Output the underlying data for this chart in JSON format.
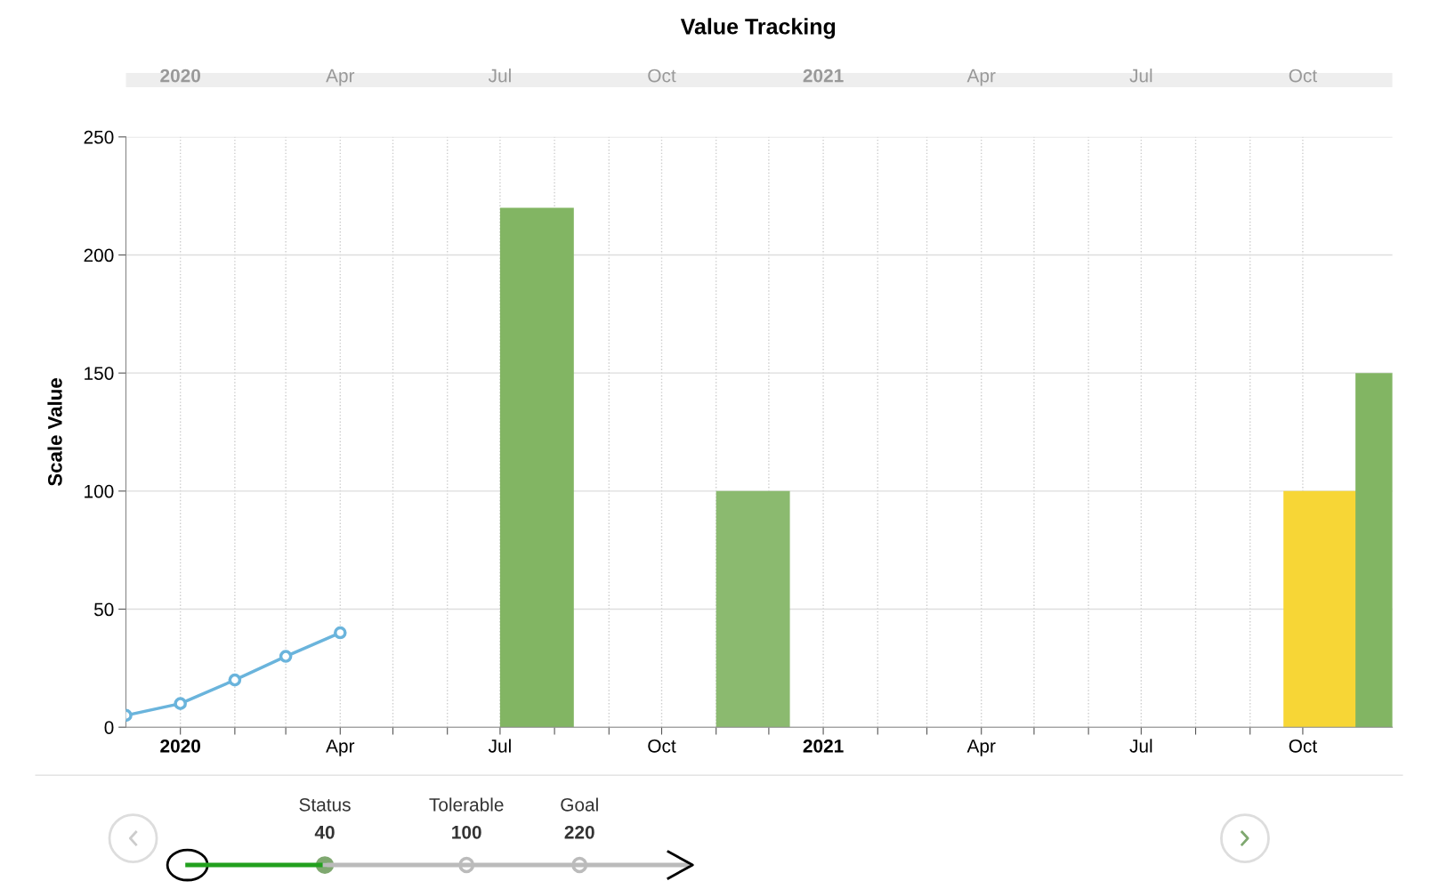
{
  "chart_data": {
    "type": "bar",
    "title": "Value Tracking",
    "ylabel": "Scale Value",
    "series": [
      {
        "type": "line",
        "color": "#6ab4dc",
        "marker": "circle",
        "line_style": "solid",
        "x": [
          "2019-12-01",
          "2020-01-01",
          "2020-02-01",
          "2020-03-01",
          "2020-04-01"
        ],
        "values": [
          5,
          10,
          20,
          30,
          40
        ]
      },
      {
        "colors": [
          "#82b563",
          "#8bba6f",
          "#f7d636",
          "#82b563"
        ],
        "x": [
          "2020-07-22",
          "2020-11-22",
          "2021-10-11",
          "2021-11-21"
        ],
        "values": [
          220,
          100,
          100,
          150
        ]
      }
    ],
    "xlim": [
      "2019-12-01",
      "2021-11-21"
    ],
    "xticks": [
      {
        "value": "2020-01-01",
        "label": "2020"
      },
      {
        "value": "2020-02-01",
        "label": null
      },
      {
        "value": "2020-03-01",
        "label": null
      },
      {
        "value": "2020-04-01",
        "label": "Apr"
      },
      {
        "value": "2020-05-01",
        "label": null
      },
      {
        "value": "2020-06-01",
        "label": null
      },
      {
        "value": "2020-07-01",
        "label": "Jul"
      },
      {
        "value": "2020-08-01",
        "label": null
      },
      {
        "value": "2020-09-01",
        "label": null
      },
      {
        "value": "2020-10-01",
        "label": "Oct"
      },
      {
        "value": "2020-11-01",
        "label": null
      },
      {
        "value": "2020-12-01",
        "label": null
      },
      {
        "value": "2021-01-01",
        "label": "2021"
      },
      {
        "value": "2021-02-01",
        "label": null
      },
      {
        "value": "2021-03-01",
        "label": null
      },
      {
        "value": "2021-04-01",
        "label": "Apr"
      },
      {
        "value": "2021-05-01",
        "label": null
      },
      {
        "value": "2021-06-01",
        "label": null
      },
      {
        "value": "2021-07-01",
        "label": "Jul"
      },
      {
        "value": "2021-08-01",
        "label": null
      },
      {
        "value": "2021-09-01",
        "label": null
      },
      {
        "value": "2021-10-01",
        "label": "Oct"
      }
    ],
    "x2lim": [
      "2019-12-01",
      "2021-11-21"
    ],
    "x2ticks": [
      {
        "value": "2020-01-01",
        "label": "2020"
      },
      {
        "value": "2020-04-01",
        "label": "Apr"
      },
      {
        "value": "2020-07-01",
        "label": "Jul"
      },
      {
        "value": "2020-10-01",
        "label": "Oct"
      },
      {
        "value": "2021-01-01",
        "label": "2021"
      },
      {
        "value": "2021-04-01",
        "label": "Apr"
      },
      {
        "value": "2021-07-01",
        "label": "Jul"
      },
      {
        "value": "2021-10-01",
        "label": "Oct"
      }
    ],
    "ylim": [
      0,
      250
    ],
    "yticks": [
      0,
      50,
      100,
      150,
      200,
      250
    ],
    "grid": true,
    "annotations": [
      "Status",
      "40",
      "Tolerable",
      "100",
      "Goal",
      "220"
    ]
  }
}
